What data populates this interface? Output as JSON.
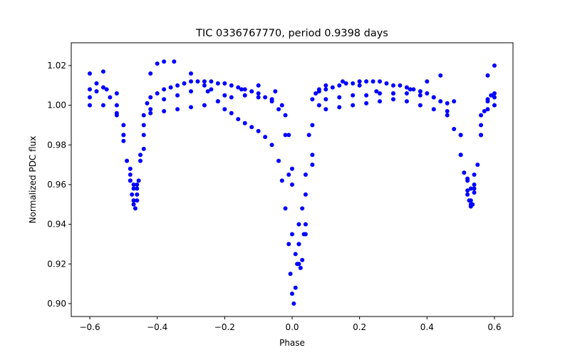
{
  "chart_data": {
    "type": "scatter",
    "title": "TIC 0336767770, period 0.9398 days",
    "xlabel": "Phase",
    "ylabel": "Normalized PDC flux",
    "xlim": [
      -0.655,
      0.655
    ],
    "ylim": [
      0.8935,
      1.0315
    ],
    "xticks": [
      -0.6,
      -0.4,
      -0.2,
      0.0,
      0.2,
      0.4,
      0.6
    ],
    "xtick_labels": [
      "−0.6",
      "−0.4",
      "−0.2",
      "0.0",
      "0.2",
      "0.4",
      "0.6"
    ],
    "yticks": [
      0.9,
      0.92,
      0.94,
      0.96,
      0.98,
      1.0,
      1.02
    ],
    "ytick_labels": [
      "0.90",
      "0.92",
      "0.94",
      "0.96",
      "0.98",
      "1.00",
      "1.02"
    ],
    "grid": false,
    "marker_color": "#0000ff",
    "series": [
      {
        "x": [
          -0.6,
          -0.58,
          -0.56,
          -0.54,
          -0.52,
          -0.5,
          -0.49,
          -0.48,
          -0.475,
          -0.47,
          -0.465,
          -0.46,
          -0.455,
          -0.45,
          -0.44,
          -0.43,
          -0.42,
          -0.4,
          -0.38,
          -0.36,
          -0.34,
          -0.32,
          -0.3,
          -0.28,
          -0.26,
          -0.24,
          -0.22,
          -0.2,
          -0.18,
          -0.16,
          -0.14,
          -0.12,
          -0.1,
          -0.08,
          -0.06,
          -0.04,
          -0.02,
          -0.01,
          0.0,
          0.01,
          0.02,
          0.025,
          0.03,
          0.035,
          0.04,
          0.05,
          0.06,
          0.07,
          0.08,
          0.1,
          0.12,
          0.14,
          0.16,
          0.18,
          0.2,
          0.22,
          0.24,
          0.26,
          0.28,
          0.3,
          0.32,
          0.34,
          0.36,
          0.38,
          0.4,
          0.42,
          0.44,
          0.46,
          0.48,
          0.5,
          0.51,
          0.52,
          0.525,
          0.53,
          0.535,
          0.54,
          0.55,
          0.56,
          0.57,
          0.58,
          0.59,
          0.6
        ],
        "y": [
          1.008,
          1.011,
          1.009,
          1.004,
          0.996,
          0.982,
          0.972,
          0.962,
          0.955,
          0.95,
          0.948,
          0.952,
          0.962,
          0.975,
          0.99,
          1.001,
          1.004,
          1.006,
          1.008,
          1.009,
          1.01,
          1.011,
          1.012,
          1.012,
          1.012,
          1.012,
          1.011,
          1.011,
          1.01,
          1.009,
          1.008,
          1.007,
          1.006,
          1.004,
          1.002,
          0.998,
          0.985,
          0.965,
          0.935,
          0.925,
          0.92,
          0.918,
          0.922,
          0.935,
          0.955,
          0.985,
          1.003,
          1.006,
          1.007,
          1.008,
          1.009,
          1.01,
          1.011,
          1.011,
          1.012,
          1.012,
          1.012,
          1.012,
          1.011,
          1.01,
          1.01,
          1.009,
          1.008,
          1.007,
          1.006,
          1.004,
          1.002,
          0.997,
          0.988,
          0.975,
          0.966,
          0.957,
          0.952,
          0.949,
          0.95,
          0.956,
          0.97,
          0.985,
          0.997,
          1.003,
          1.005,
          1.006
        ]
      },
      {
        "x": [
          -0.6,
          -0.56,
          -0.52,
          -0.5,
          -0.48,
          -0.47,
          -0.46,
          -0.45,
          -0.44,
          -0.42,
          -0.4,
          -0.38,
          -0.35,
          -0.3,
          -0.25,
          -0.2,
          -0.15,
          -0.1,
          -0.05,
          -0.02,
          0.0,
          0.02,
          0.04,
          0.06,
          0.08,
          0.1,
          0.15,
          0.2,
          0.25,
          0.3,
          0.35,
          0.4,
          0.44,
          0.48,
          0.5,
          0.52,
          0.53,
          0.54,
          0.56,
          0.58,
          0.6
        ],
        "y": [
          1.016,
          1.017,
          1.006,
          0.99,
          0.968,
          0.96,
          0.958,
          0.972,
          0.995,
          1.016,
          1.021,
          1.022,
          1.022,
          1.016,
          1.007,
          1.005,
          1.008,
          1.01,
          1.007,
          0.995,
          0.968,
          0.94,
          0.935,
          0.97,
          1.008,
          1.01,
          1.012,
          1.01,
          1.007,
          1.006,
          1.008,
          1.012,
          1.015,
          1.002,
          0.985,
          0.963,
          0.958,
          0.965,
          0.995,
          1.015,
          1.02
        ]
      },
      {
        "x": [
          -0.6,
          -0.56,
          -0.52,
          -0.5,
          -0.48,
          -0.47,
          -0.46,
          -0.44,
          -0.42,
          -0.38,
          -0.34,
          -0.3,
          -0.26,
          -0.22,
          -0.18,
          -0.14,
          -0.1,
          -0.06,
          -0.03,
          -0.01,
          0.0,
          0.02,
          0.04,
          0.06,
          0.1,
          0.14,
          0.18,
          0.22,
          0.26,
          0.3,
          0.34,
          0.38,
          0.42,
          0.46,
          0.5,
          0.52,
          0.53,
          0.54,
          0.56,
          0.58,
          0.6
        ],
        "y": [
          1.0,
          1.0,
          0.995,
          0.985,
          0.965,
          0.958,
          0.96,
          0.985,
          0.996,
          0.997,
          0.998,
          0.999,
          1.0,
          1.002,
          1.004,
          1.005,
          1.004,
          1.003,
          1.0,
          0.985,
          0.96,
          0.93,
          0.94,
          0.975,
          0.998,
          0.999,
          1.0,
          1.001,
          1.002,
          1.003,
          1.002,
          1.0,
          0.998,
          0.995,
          0.975,
          0.955,
          0.95,
          0.958,
          0.985,
          0.998,
          1.0
        ]
      },
      {
        "x": [
          -0.6,
          -0.58,
          -0.55,
          -0.52,
          -0.5,
          -0.48,
          -0.47,
          -0.46,
          -0.44,
          -0.42,
          -0.38,
          -0.34,
          -0.3,
          -0.26,
          -0.24,
          -0.22,
          -0.2,
          -0.18,
          -0.16,
          -0.14,
          -0.12,
          -0.1,
          -0.08,
          -0.06,
          -0.04,
          -0.03,
          -0.02,
          -0.01,
          -0.005,
          0.0,
          0.005,
          0.01,
          0.015,
          0.02,
          0.03,
          0.04,
          0.06,
          0.08,
          0.1,
          0.14,
          0.18,
          0.22,
          0.26,
          0.3,
          0.34,
          0.38,
          0.42,
          0.46,
          0.5,
          0.52,
          0.53,
          0.54,
          0.56,
          0.58,
          0.6
        ],
        "y": [
          1.004,
          1.007,
          1.008,
          1.0,
          0.985,
          0.962,
          0.952,
          0.955,
          0.978,
          0.998,
          1.003,
          1.005,
          1.007,
          1.01,
          1.008,
          1.002,
          0.998,
          0.996,
          0.993,
          0.991,
          0.989,
          0.987,
          0.984,
          0.98,
          0.972,
          0.962,
          0.948,
          0.93,
          0.915,
          0.905,
          0.9,
          0.908,
          0.92,
          0.93,
          0.948,
          0.965,
          0.99,
          1.0,
          1.003,
          1.004,
          1.005,
          1.005,
          1.006,
          1.006,
          1.006,
          1.005,
          1.004,
          1.001,
          0.985,
          0.962,
          0.952,
          0.96,
          0.99,
          1.002,
          1.004
        ]
      }
    ]
  }
}
